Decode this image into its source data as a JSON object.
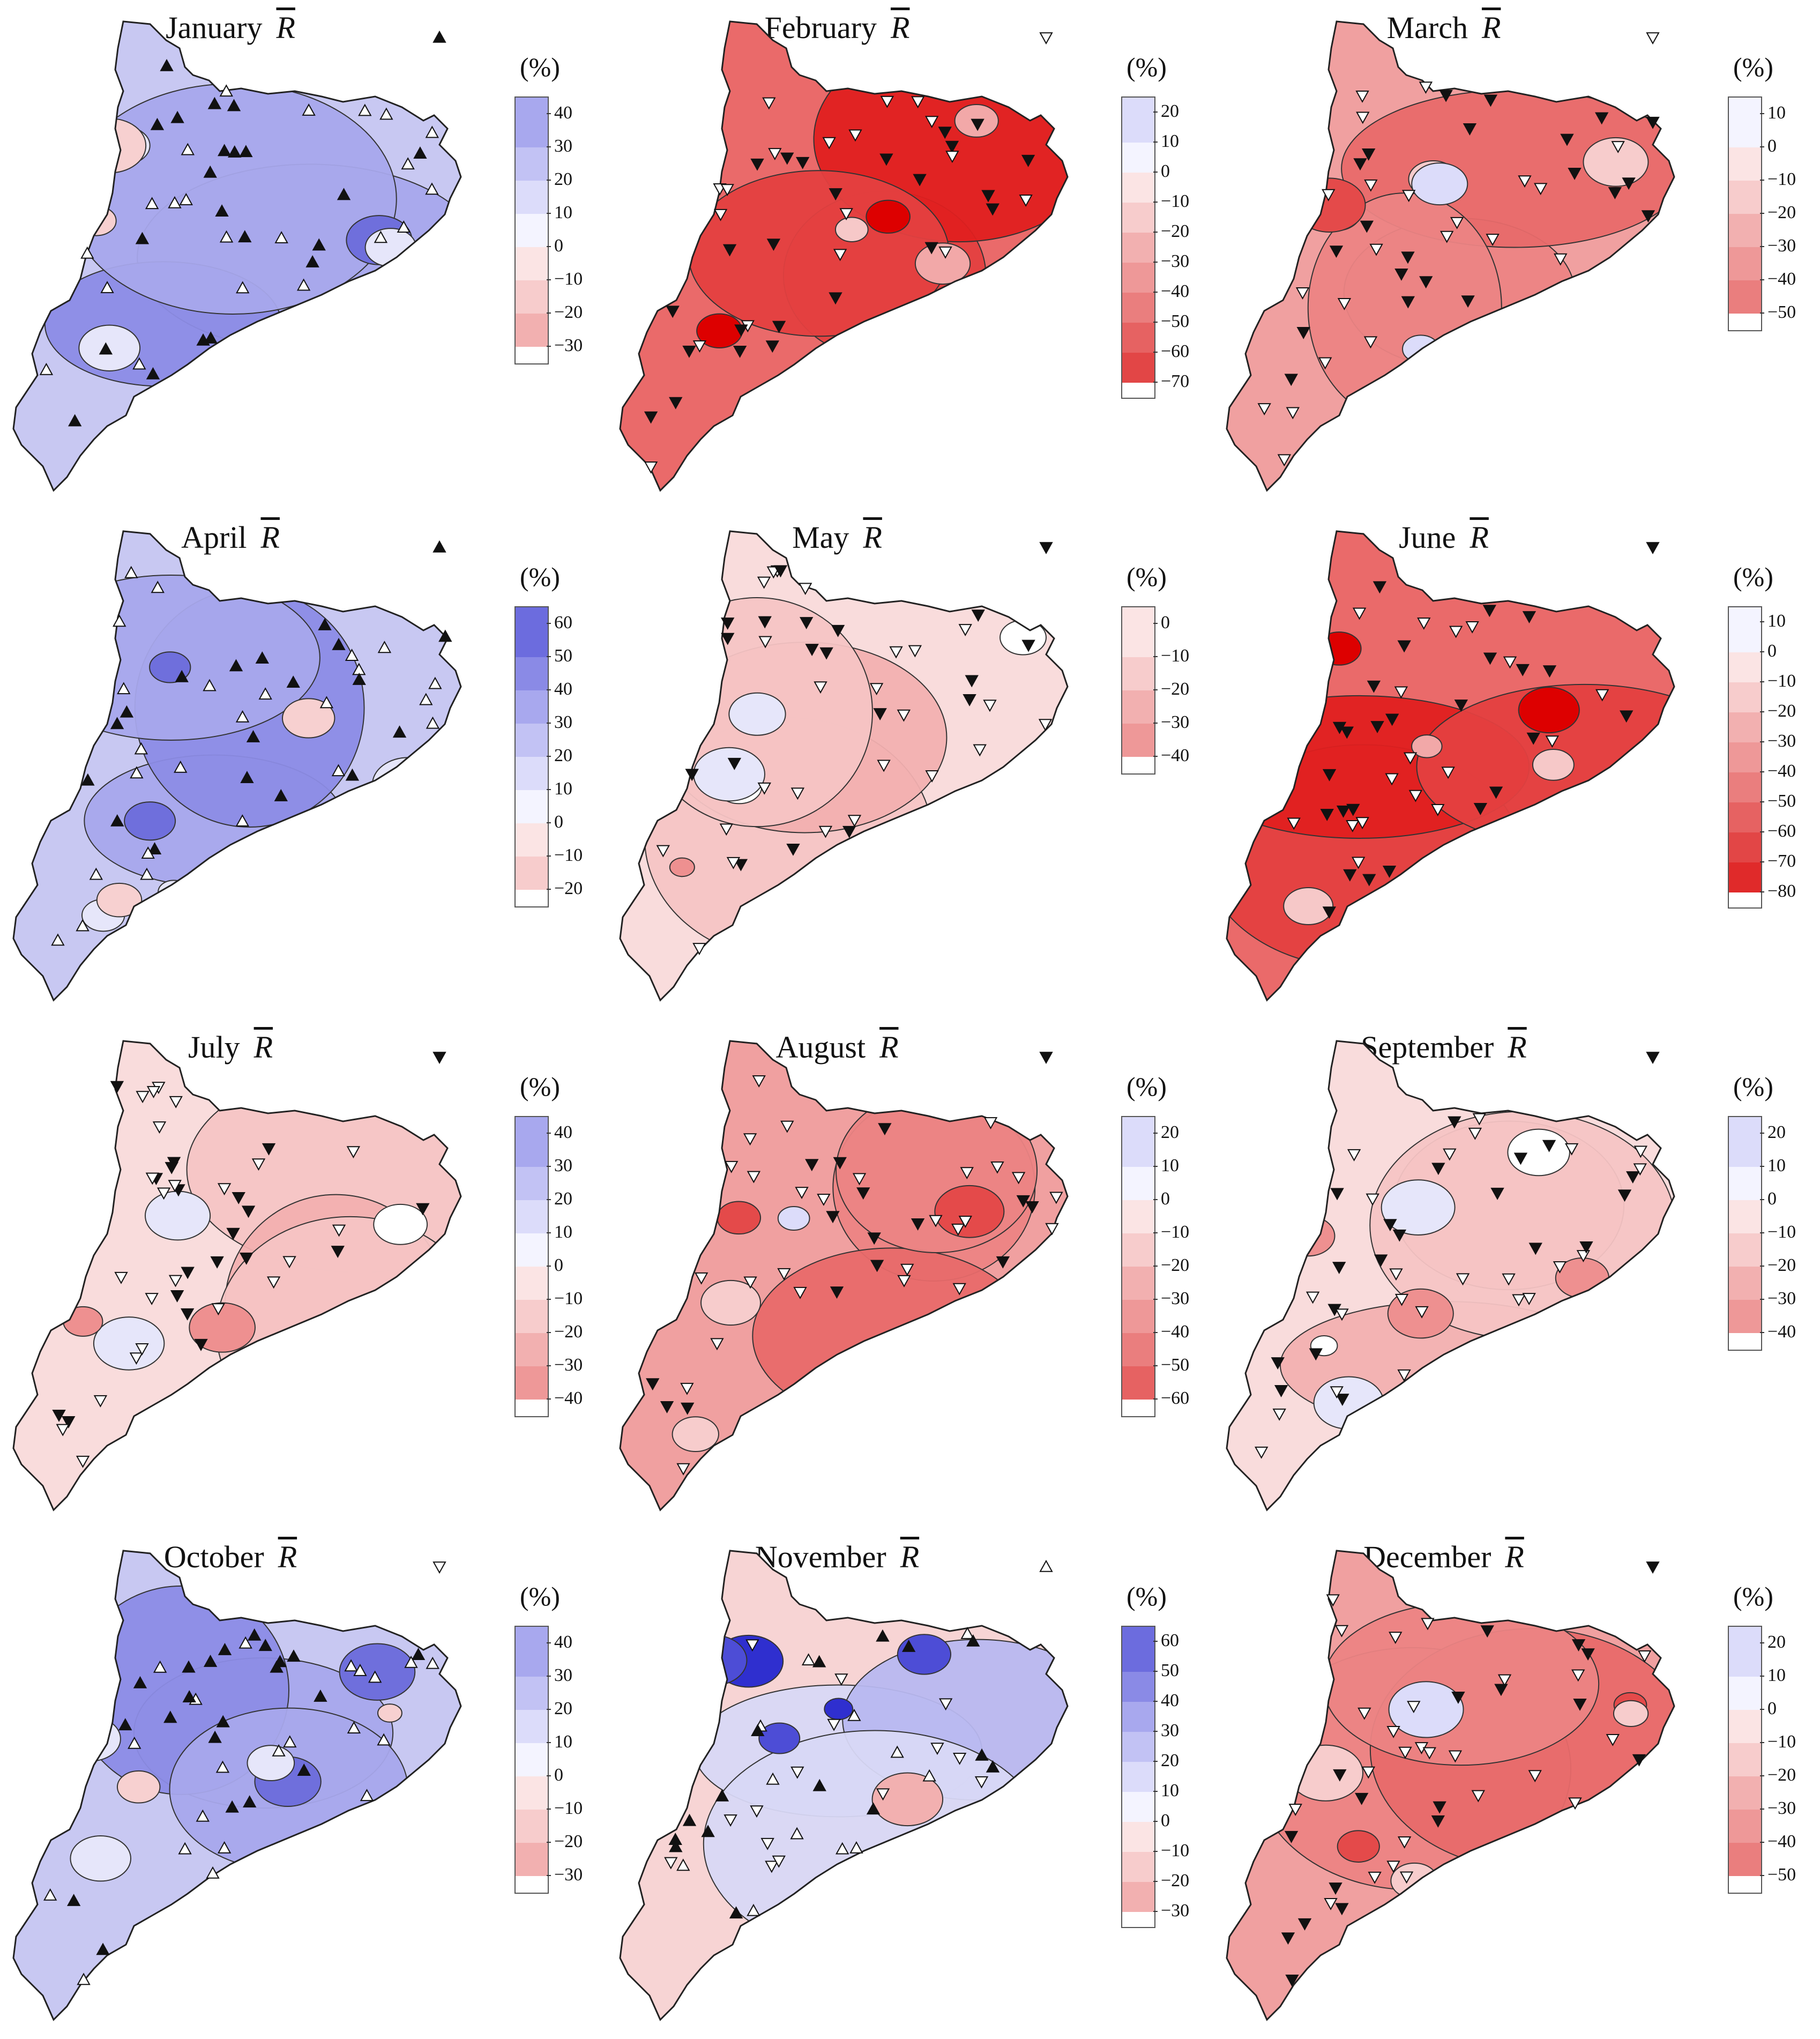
{
  "figure": {
    "symbol": "R",
    "unit_label": "(%)",
    "colors": {
      "positive": "#3333dd",
      "negative": "#ee1111",
      "neutral": "#ffffff",
      "outline": "#333333"
    },
    "markers": {
      "up_filled": "significant increase",
      "up_open": "non-significant increase",
      "down_filled": "significant decrease",
      "down_open": "non-significant decrease"
    }
  },
  "panels": [
    {
      "month": "January",
      "legend": [
        "40",
        "30",
        "20",
        "10",
        "0",
        "-10",
        "-20",
        "-30"
      ],
      "map_tone": "blue",
      "corner_marker": "up_filled"
    },
    {
      "month": "February",
      "legend": [
        "20",
        "10",
        "0",
        "-10",
        "-20",
        "-30",
        "-40",
        "-50",
        "-60",
        "-70"
      ],
      "map_tone": "deep_red",
      "corner_marker": "down_open"
    },
    {
      "month": "March",
      "legend": [
        "10",
        "0",
        "-10",
        "-20",
        "-30",
        "-40",
        "-50"
      ],
      "map_tone": "red",
      "corner_marker": "down_open"
    },
    {
      "month": "April",
      "legend": [
        "60",
        "50",
        "40",
        "30",
        "20",
        "10",
        "0",
        "-10",
        "-20"
      ],
      "map_tone": "blue",
      "corner_marker": "up_filled"
    },
    {
      "month": "May",
      "legend": [
        "0",
        "-10",
        "-20",
        "-30",
        "-40"
      ],
      "map_tone": "light_red",
      "corner_marker": "down_filled"
    },
    {
      "month": "June",
      "legend": [
        "10",
        "0",
        "-10",
        "-20",
        "-30",
        "-40",
        "-50",
        "-60",
        "-70",
        "-80"
      ],
      "map_tone": "deep_red",
      "corner_marker": "down_filled"
    },
    {
      "month": "July",
      "legend": [
        "40",
        "30",
        "20",
        "10",
        "0",
        "-10",
        "-20",
        "-30",
        "-40"
      ],
      "map_tone": "light_red",
      "corner_marker": "down_filled"
    },
    {
      "month": "August",
      "legend": [
        "20",
        "10",
        "0",
        "-10",
        "-20",
        "-30",
        "-40",
        "-50",
        "-60"
      ],
      "map_tone": "red",
      "corner_marker": "down_filled"
    },
    {
      "month": "September",
      "legend": [
        "20",
        "10",
        "0",
        "-10",
        "-20",
        "-30",
        "-40"
      ],
      "map_tone": "light_red",
      "corner_marker": "down_filled"
    },
    {
      "month": "October",
      "legend": [
        "40",
        "30",
        "20",
        "10",
        "0",
        "-10",
        "-20",
        "-30"
      ],
      "map_tone": "blue",
      "corner_marker": "down_open"
    },
    {
      "month": "November",
      "legend": [
        "60",
        "50",
        "40",
        "30",
        "20",
        "10",
        "0",
        "-10",
        "-20",
        "-30"
      ],
      "map_tone": "mixed",
      "corner_marker": "up_open"
    },
    {
      "month": "December",
      "legend": [
        "20",
        "10",
        "0",
        "-10",
        "-20",
        "-30",
        "-40",
        "-50"
      ],
      "map_tone": "red",
      "corner_marker": "down_filled"
    }
  ]
}
